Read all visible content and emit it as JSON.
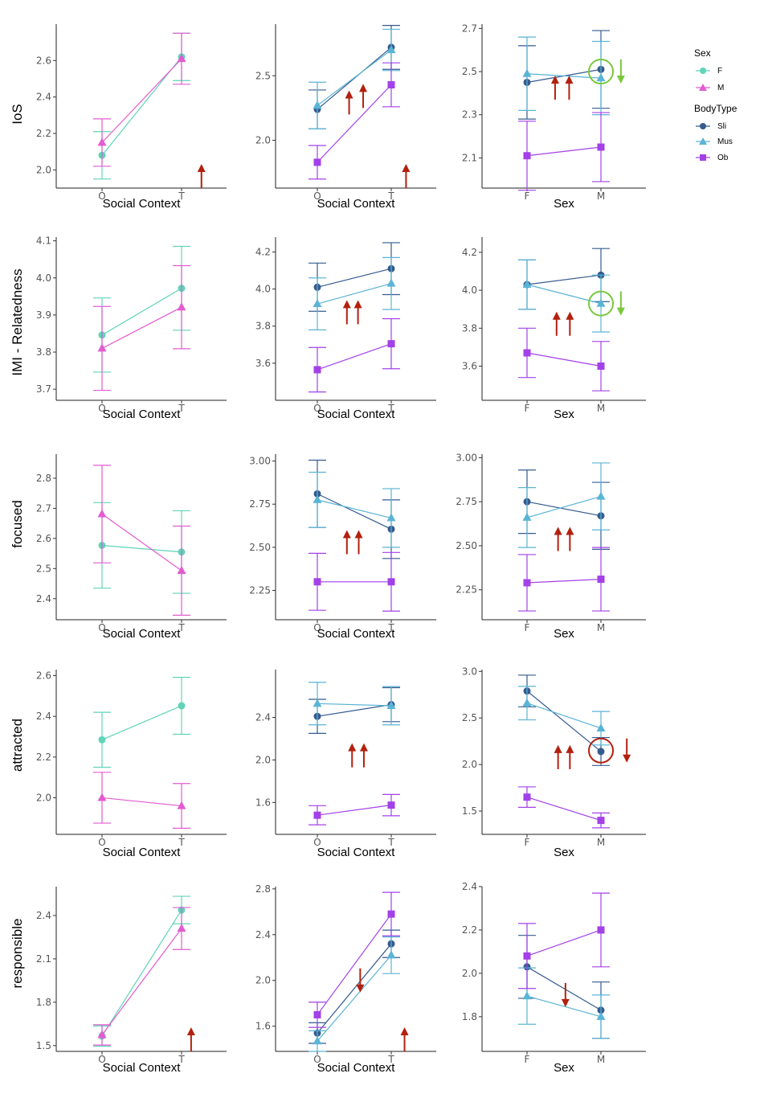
{
  "colors": {
    "F": "#5fd4b8",
    "M": "#e35bd0",
    "Sli": "#355b8f",
    "Mus": "#5ab4d6",
    "Ob": "#a341e8",
    "annot_red": "#b3200e",
    "annot_green": "#79c83c"
  },
  "legend": {
    "sex_title": "Sex",
    "sex_items": [
      {
        "key": "F",
        "label": "F",
        "shape": "circle"
      },
      {
        "key": "M",
        "label": "M",
        "shape": "triangle"
      }
    ],
    "body_title": "BodyType",
    "body_items": [
      {
        "key": "Sli",
        "label": "Sli",
        "shape": "circle"
      },
      {
        "key": "Mus",
        "label": "Mus",
        "shape": "triangle"
      },
      {
        "key": "Ob",
        "label": "Ob",
        "shape": "square"
      }
    ]
  },
  "rows": [
    {
      "label": "IoS"
    },
    {
      "label": "IMI - Relatedness"
    },
    {
      "label": "focused"
    },
    {
      "label": "attracted"
    },
    {
      "label": "responsible"
    }
  ],
  "chart_data": [
    {
      "type": "line",
      "panel": "IoS - Social Context x Sex",
      "xlabel": "Social Context",
      "ylabel": "IoS",
      "categories": [
        "O",
        "T"
      ],
      "ylim": [
        1.9,
        2.8
      ],
      "yticks": [
        2.0,
        2.2,
        2.4,
        2.6
      ],
      "tick_decimals": 1,
      "series": [
        {
          "name": "F",
          "values": [
            2.08,
            2.62
          ],
          "err": [
            0.13,
            0.13
          ]
        },
        {
          "name": "M",
          "values": [
            2.15,
            2.61
          ],
          "err": [
            0.13,
            0.14
          ]
        }
      ],
      "annotations": [
        {
          "type": "arrow",
          "dir": "up",
          "color": "red",
          "x": 1.25,
          "y": 1.9
        }
      ]
    },
    {
      "type": "line",
      "panel": "IoS - Social Context x BodyType",
      "xlabel": "Social Context",
      "ylabel": "IoS",
      "categories": [
        "O",
        "T"
      ],
      "ylim": [
        1.63,
        2.9
      ],
      "yticks": [
        2.0,
        2.5
      ],
      "tick_decimals": 1,
      "series": [
        {
          "name": "Sli",
          "values": [
            2.24,
            2.72
          ],
          "err": [
            0.15,
            0.17
          ]
        },
        {
          "name": "Mus",
          "values": [
            2.27,
            2.7
          ],
          "err": [
            0.18,
            0.16
          ]
        },
        {
          "name": "Ob",
          "values": [
            1.83,
            2.43
          ],
          "err": [
            0.13,
            0.17
          ]
        }
      ],
      "annotations": [
        {
          "type": "arrow",
          "dir": "up",
          "color": "red",
          "x": 0.43,
          "y": 2.2
        },
        {
          "type": "arrow",
          "dir": "up",
          "color": "red",
          "x": 0.62,
          "y": 2.25
        },
        {
          "type": "arrow",
          "dir": "up",
          "color": "red",
          "x": 1.2,
          "y": 1.63
        }
      ]
    },
    {
      "type": "line",
      "panel": "IoS - Sex x BodyType",
      "xlabel": "Sex",
      "ylabel": "IoS",
      "categories": [
        "F",
        "M"
      ],
      "ylim": [
        1.96,
        2.72
      ],
      "yticks": [
        2.1,
        2.3,
        2.5,
        2.7
      ],
      "tick_decimals": 1,
      "series": [
        {
          "name": "Sli",
          "values": [
            2.45,
            2.51
          ],
          "err": [
            0.17,
            0.18
          ]
        },
        {
          "name": "Mus",
          "values": [
            2.49,
            2.47
          ],
          "err": [
            0.17,
            0.17
          ]
        },
        {
          "name": "Ob",
          "values": [
            2.11,
            2.15
          ],
          "err": [
            0.16,
            0.16
          ]
        }
      ],
      "annotations": [
        {
          "type": "circle",
          "color": "green",
          "x": 1.0,
          "y": 2.5
        },
        {
          "type": "arrow",
          "dir": "down",
          "color": "green",
          "x": 1.27,
          "y": 2.5
        },
        {
          "type": "arrow",
          "dir": "up",
          "color": "red",
          "x": 0.38,
          "y": 2.37
        },
        {
          "type": "arrow",
          "dir": "up",
          "color": "red",
          "x": 0.57,
          "y": 2.37
        }
      ]
    },
    {
      "type": "line",
      "panel": "IMI - Relatedness - Social Context x Sex",
      "xlabel": "Social Context",
      "ylabel": "IMI - Relatedness",
      "categories": [
        "O",
        "T"
      ],
      "ylim": [
        3.67,
        4.11
      ],
      "yticks": [
        3.7,
        3.8,
        3.9,
        4.0,
        4.1
      ],
      "tick_decimals": 1,
      "series": [
        {
          "name": "F",
          "values": [
            3.846,
            3.972
          ],
          "err": [
            0.1,
            0.113
          ]
        },
        {
          "name": "M",
          "values": [
            3.81,
            3.921
          ],
          "err": [
            0.113,
            0.112
          ]
        }
      ],
      "annotations": []
    },
    {
      "type": "line",
      "panel": "IMI - Relatedness - Social Context x BodyType",
      "xlabel": "Social Context",
      "ylabel": "IMI - Relatedness",
      "categories": [
        "O",
        "T"
      ],
      "ylim": [
        3.4,
        4.28
      ],
      "yticks": [
        3.6,
        3.8,
        4.0,
        4.2
      ],
      "tick_decimals": 1,
      "series": [
        {
          "name": "Sli",
          "values": [
            4.01,
            4.11
          ],
          "err": [
            0.13,
            0.14
          ]
        },
        {
          "name": "Mus",
          "values": [
            3.92,
            4.03
          ],
          "err": [
            0.14,
            0.14
          ]
        },
        {
          "name": "Ob",
          "values": [
            3.565,
            3.705
          ],
          "err": [
            0.12,
            0.135
          ]
        }
      ],
      "annotations": [
        {
          "type": "arrow",
          "dir": "up",
          "color": "red",
          "x": 0.4,
          "y": 3.81
        },
        {
          "type": "arrow",
          "dir": "up",
          "color": "red",
          "x": 0.55,
          "y": 3.81
        }
      ]
    },
    {
      "type": "line",
      "panel": "IMI - Relatedness - Sex x BodyType",
      "xlabel": "Sex",
      "ylabel": "IMI - Relatedness",
      "categories": [
        "F",
        "M"
      ],
      "ylim": [
        3.42,
        4.28
      ],
      "yticks": [
        3.6,
        3.8,
        4.0,
        4.2
      ],
      "tick_decimals": 1,
      "series": [
        {
          "name": "Sli",
          "values": [
            4.03,
            4.08
          ],
          "err": [
            0.13,
            0.14
          ]
        },
        {
          "name": "Mus",
          "values": [
            4.03,
            3.93
          ],
          "err": [
            0.13,
            0.15
          ]
        },
        {
          "name": "Ob",
          "values": [
            3.67,
            3.6
          ],
          "err": [
            0.13,
            0.13
          ]
        }
      ],
      "annotations": [
        {
          "type": "circle",
          "color": "green",
          "x": 1.0,
          "y": 3.93
        },
        {
          "type": "arrow",
          "dir": "down",
          "color": "green",
          "x": 1.27,
          "y": 3.93
        },
        {
          "type": "arrow",
          "dir": "up",
          "color": "red",
          "x": 0.4,
          "y": 3.76
        },
        {
          "type": "arrow",
          "dir": "up",
          "color": "red",
          "x": 0.58,
          "y": 3.76
        }
      ]
    },
    {
      "type": "line",
      "panel": "focused - Social Context x Sex",
      "xlabel": "Social Context",
      "ylabel": "focused",
      "categories": [
        "O",
        "T"
      ],
      "ylim": [
        2.33,
        2.88
      ],
      "yticks": [
        2.4,
        2.5,
        2.6,
        2.7,
        2.8
      ],
      "tick_decimals": 1,
      "series": [
        {
          "name": "F",
          "values": [
            2.577,
            2.555
          ],
          "err": [
            0.142,
            0.137
          ]
        },
        {
          "name": "M",
          "values": [
            2.681,
            2.493
          ],
          "err": [
            0.162,
            0.148
          ]
        }
      ],
      "annotations": []
    },
    {
      "type": "line",
      "panel": "focused - Social Context x BodyType",
      "xlabel": "Social Context",
      "ylabel": "focused",
      "categories": [
        "O",
        "T"
      ],
      "ylim": [
        2.08,
        3.04
      ],
      "yticks": [
        2.25,
        2.5,
        2.75,
        3.0
      ],
      "tick_decimals": 2,
      "series": [
        {
          "name": "Sli",
          "values": [
            2.81,
            2.605
          ],
          "err": [
            0.195,
            0.17
          ]
        },
        {
          "name": "Mus",
          "values": [
            2.775,
            2.67
          ],
          "err": [
            0.16,
            0.17
          ]
        },
        {
          "name": "Ob",
          "values": [
            2.3,
            2.3
          ],
          "err": [
            0.165,
            0.17
          ]
        }
      ],
      "annotations": [
        {
          "type": "arrow",
          "dir": "up",
          "color": "red",
          "x": 0.4,
          "y": 2.46
        },
        {
          "type": "arrow",
          "dir": "up",
          "color": "red",
          "x": 0.56,
          "y": 2.46
        }
      ]
    },
    {
      "type": "line",
      "panel": "focused - Sex x BodyType",
      "xlabel": "Sex",
      "ylabel": "focused",
      "categories": [
        "F",
        "M"
      ],
      "ylim": [
        2.08,
        3.02
      ],
      "yticks": [
        2.25,
        2.5,
        2.75,
        3.0
      ],
      "tick_decimals": 2,
      "series": [
        {
          "name": "Sli",
          "values": [
            2.75,
            2.67
          ],
          "err": [
            0.18,
            0.19
          ]
        },
        {
          "name": "Mus",
          "values": [
            2.66,
            2.78
          ],
          "err": [
            0.17,
            0.19
          ]
        },
        {
          "name": "Ob",
          "values": [
            2.29,
            2.31
          ],
          "err": [
            0.16,
            0.18
          ]
        }
      ],
      "annotations": [
        {
          "type": "arrow",
          "dir": "up",
          "color": "red",
          "x": 0.42,
          "y": 2.47
        },
        {
          "type": "arrow",
          "dir": "up",
          "color": "red",
          "x": 0.58,
          "y": 2.47
        }
      ]
    },
    {
      "type": "line",
      "panel": "attracted - Social Context x Sex",
      "xlabel": "Social Context",
      "ylabel": "attracted",
      "categories": [
        "O",
        "T"
      ],
      "ylim": [
        1.82,
        2.63
      ],
      "yticks": [
        2.0,
        2.2,
        2.4,
        2.6
      ],
      "tick_decimals": 1,
      "series": [
        {
          "name": "F",
          "values": [
            2.285,
            2.452
          ],
          "err": [
            0.135,
            0.14
          ]
        },
        {
          "name": "M",
          "values": [
            2.0,
            1.96
          ],
          "err": [
            0.125,
            0.11
          ]
        }
      ],
      "annotations": []
    },
    {
      "type": "line",
      "panel": "attracted - Social Context x BodyType",
      "xlabel": "Social Context",
      "ylabel": "attracted",
      "categories": [
        "O",
        "T"
      ],
      "ylim": [
        1.3,
        2.85
      ],
      "yticks": [
        1.6,
        2.0,
        2.4
      ],
      "tick_decimals": 1,
      "series": [
        {
          "name": "Sli",
          "values": [
            2.41,
            2.52
          ],
          "err": [
            0.16,
            0.16
          ]
        },
        {
          "name": "Mus",
          "values": [
            2.53,
            2.51
          ],
          "err": [
            0.2,
            0.18
          ]
        },
        {
          "name": "Ob",
          "values": [
            1.48,
            1.575
          ],
          "err": [
            0.09,
            0.1
          ]
        }
      ],
      "annotations": [
        {
          "type": "arrow",
          "dir": "up",
          "color": "red",
          "x": 0.47,
          "y": 1.93
        },
        {
          "type": "arrow",
          "dir": "up",
          "color": "red",
          "x": 0.63,
          "y": 1.93
        }
      ]
    },
    {
      "type": "line",
      "panel": "attracted - Sex x BodyType",
      "xlabel": "Sex",
      "ylabel": "attracted",
      "categories": [
        "F",
        "M"
      ],
      "ylim": [
        1.25,
        3.02
      ],
      "yticks": [
        1.5,
        2.0,
        2.5,
        3.0
      ],
      "tick_decimals": 1,
      "series": [
        {
          "name": "Sli",
          "values": [
            2.79,
            2.14
          ],
          "err": [
            0.17,
            0.15
          ]
        },
        {
          "name": "Mus",
          "values": [
            2.66,
            2.39
          ],
          "err": [
            0.18,
            0.18
          ]
        },
        {
          "name": "Ob",
          "values": [
            1.65,
            1.4
          ],
          "err": [
            0.11,
            0.08
          ]
        }
      ],
      "annotations": [
        {
          "type": "circle",
          "color": "red",
          "x": 1.0,
          "y": 2.15
        },
        {
          "type": "arrow",
          "dir": "down",
          "color": "red",
          "x": 1.35,
          "y": 2.15
        },
        {
          "type": "arrow",
          "dir": "up",
          "color": "red",
          "x": 0.42,
          "y": 1.95
        },
        {
          "type": "arrow",
          "dir": "up",
          "color": "red",
          "x": 0.58,
          "y": 1.95
        }
      ]
    },
    {
      "type": "line",
      "panel": "responsible - Social Context x Sex",
      "xlabel": "Social Context",
      "ylabel": "responsible",
      "categories": [
        "O",
        "T"
      ],
      "ylim": [
        1.46,
        2.6
      ],
      "yticks": [
        1.5,
        1.8,
        2.1,
        2.4
      ],
      "tick_decimals": 1,
      "series": [
        {
          "name": "F",
          "values": [
            1.566,
            2.438
          ],
          "err": [
            0.07,
            0.095
          ]
        },
        {
          "name": "M",
          "values": [
            1.574,
            2.31
          ],
          "err": [
            0.07,
            0.145
          ]
        }
      ],
      "annotations": [
        {
          "type": "arrow",
          "dir": "up",
          "color": "red",
          "x": 1.12,
          "y": 1.46
        }
      ]
    },
    {
      "type": "line",
      "panel": "responsible - Social Context x BodyType",
      "xlabel": "Social Context",
      "ylabel": "responsible",
      "categories": [
        "O",
        "T"
      ],
      "ylim": [
        1.38,
        2.82
      ],
      "yticks": [
        1.6,
        2.0,
        2.4,
        2.8
      ],
      "tick_decimals": 1,
      "series": [
        {
          "name": "Sli",
          "values": [
            1.54,
            2.32
          ],
          "err": [
            0.09,
            0.12
          ]
        },
        {
          "name": "Mus",
          "values": [
            1.47,
            2.22
          ],
          "err": [
            0.09,
            0.16
          ]
        },
        {
          "name": "Ob",
          "values": [
            1.7,
            2.58
          ],
          "err": [
            0.11,
            0.19
          ]
        }
      ],
      "annotations": [
        {
          "type": "arrow",
          "dir": "down",
          "color": "red",
          "x": 0.58,
          "y": 2.0
        },
        {
          "type": "arrow",
          "dir": "up",
          "color": "red",
          "x": 1.18,
          "y": 1.38
        }
      ]
    },
    {
      "type": "line",
      "panel": "responsible - Sex x BodyType",
      "xlabel": "Sex",
      "ylabel": "responsible",
      "categories": [
        "F",
        "M"
      ],
      "ylim": [
        1.64,
        2.4
      ],
      "yticks": [
        1.8,
        2.0,
        2.2,
        2.4
      ],
      "tick_decimals": 1,
      "series": [
        {
          "name": "Sli",
          "values": [
            2.03,
            1.83
          ],
          "err": [
            0.145,
            0.13
          ]
        },
        {
          "name": "Mus",
          "values": [
            1.895,
            1.8
          ],
          "err": [
            0.13,
            0.1
          ]
        },
        {
          "name": "Ob",
          "values": [
            2.08,
            2.2
          ],
          "err": [
            0.15,
            0.17
          ]
        }
      ],
      "annotations": [
        {
          "type": "arrow",
          "dir": "down",
          "color": "red",
          "x": 0.52,
          "y": 1.9
        }
      ]
    }
  ]
}
